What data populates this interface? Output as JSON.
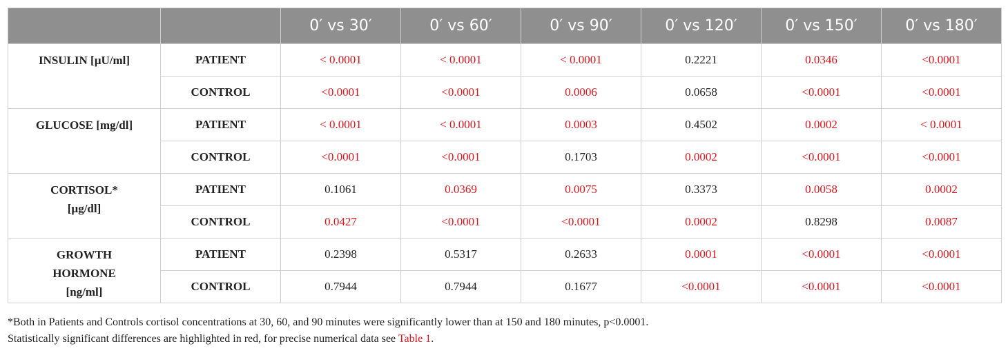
{
  "header": {
    "cols": [
      "",
      "",
      "0′ vs 30′",
      "0′ vs 60′",
      "0′ vs 90′",
      "0′ vs 120′",
      "0′ vs 150′",
      "0′ vs 180′"
    ]
  },
  "colors": {
    "significant": "#e0141a",
    "header_bg": "#8f8f8f",
    "text": "#222222"
  },
  "rows": [
    {
      "param": "INSULIN [µU/ml]",
      "groups": [
        {
          "group": "PATIENT",
          "cells": [
            {
              "v": "< 0.0001",
              "sig": true
            },
            {
              "v": "< 0.0001",
              "sig": true
            },
            {
              "v": "< 0.0001",
              "sig": true
            },
            {
              "v": "0.2221",
              "sig": false
            },
            {
              "v": "0.0346",
              "sig": true
            },
            {
              "v": "<0.0001",
              "sig": true
            }
          ]
        },
        {
          "group": "CONTROL",
          "cells": [
            {
              "v": "<0.0001",
              "sig": true
            },
            {
              "v": "<0.0001",
              "sig": true
            },
            {
              "v": "0.0006",
              "sig": true
            },
            {
              "v": "0.0658",
              "sig": false
            },
            {
              "v": "<0.0001",
              "sig": true
            },
            {
              "v": "<0.0001",
              "sig": true
            }
          ]
        }
      ]
    },
    {
      "param": "GLUCOSE [mg/dl]",
      "groups": [
        {
          "group": "PATIENT",
          "cells": [
            {
              "v": "< 0.0001",
              "sig": true
            },
            {
              "v": "< 0.0001",
              "sig": true
            },
            {
              "v": "0.0003",
              "sig": true
            },
            {
              "v": "0.4502",
              "sig": false
            },
            {
              "v": "0.0002",
              "sig": true
            },
            {
              "v": "< 0.0001",
              "sig": true
            }
          ]
        },
        {
          "group": "CONTROL",
          "cells": [
            {
              "v": "<0.0001",
              "sig": true
            },
            {
              "v": "<0.0001",
              "sig": true
            },
            {
              "v": "0.1703",
              "sig": false
            },
            {
              "v": "0.0002",
              "sig": true
            },
            {
              "v": "<0.0001",
              "sig": true
            },
            {
              "v": "<0.0001",
              "sig": true
            }
          ]
        }
      ]
    },
    {
      "param": "CORTISOL* [µg/dl]",
      "lines": [
        "CORTISOL*",
        "[µg/dl]"
      ],
      "groups": [
        {
          "group": "PATIENT",
          "cells": [
            {
              "v": "0.1061",
              "sig": false
            },
            {
              "v": "0.0369",
              "sig": true
            },
            {
              "v": "0.0075",
              "sig": true
            },
            {
              "v": "0.3373",
              "sig": false
            },
            {
              "v": "0.0058",
              "sig": true
            },
            {
              "v": "0.0002",
              "sig": true
            }
          ]
        },
        {
          "group": "CONTROL",
          "cells": [
            {
              "v": "0.0427",
              "sig": true
            },
            {
              "v": "<0.0001",
              "sig": true
            },
            {
              "v": "<0.0001",
              "sig": true
            },
            {
              "v": "0.0002",
              "sig": true
            },
            {
              "v": "0.8298",
              "sig": false
            },
            {
              "v": "0.0087",
              "sig": true
            }
          ]
        }
      ]
    },
    {
      "param": "GROWTH HORMONE [ng/ml]",
      "lines": [
        "GROWTH",
        "HORMONE",
        "[ng/ml]"
      ],
      "groups": [
        {
          "group": "PATIENT",
          "cells": [
            {
              "v": "0.2398",
              "sig": false
            },
            {
              "v": "0.5317",
              "sig": false
            },
            {
              "v": "0.2633",
              "sig": false
            },
            {
              "v": "0.0001",
              "sig": true
            },
            {
              "v": "<0.0001",
              "sig": true
            },
            {
              "v": "<0.0001",
              "sig": true
            }
          ]
        },
        {
          "group": "CONTROL",
          "cells": [
            {
              "v": "0.7944",
              "sig": false
            },
            {
              "v": "0.7944",
              "sig": false
            },
            {
              "v": "0.1677",
              "sig": false
            },
            {
              "v": "<0.0001",
              "sig": true
            },
            {
              "v": "<0.0001",
              "sig": true
            },
            {
              "v": "<0.0001",
              "sig": true
            }
          ]
        }
      ]
    }
  ],
  "notes": {
    "line1": "*Both in Patients and Controls cortisol concentrations at 30, 60, and 90 minutes were significantly lower than at 150 and 180 minutes, p<0.0001.",
    "line2_text": "Statistically significant differences are highlighted in red, for precise numerical data see ",
    "line2_ref": "Table 1",
    "line2_end": "."
  }
}
